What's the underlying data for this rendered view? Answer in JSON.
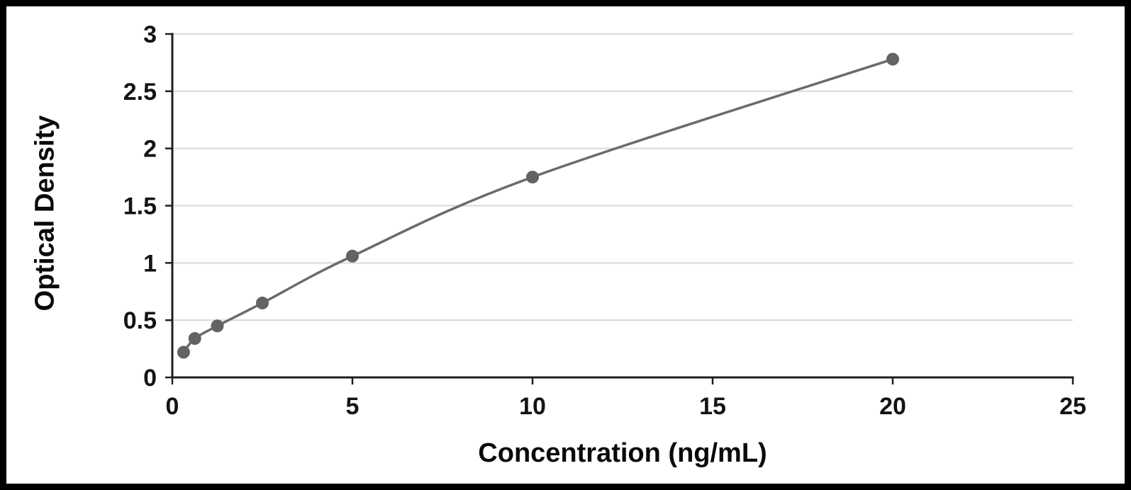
{
  "chart_data": {
    "type": "line",
    "title": "",
    "xlabel": "Concentration (ng/mL)",
    "ylabel": "Optical Density",
    "x": [
      0.313,
      0.625,
      1.25,
      2.5,
      5,
      10,
      20
    ],
    "y": [
      0.22,
      0.34,
      0.45,
      0.65,
      1.06,
      1.75,
      2.78
    ],
    "xlim": [
      0,
      25
    ],
    "ylim": [
      0,
      3
    ],
    "x_ticks": [
      0,
      5,
      10,
      15,
      20,
      25
    ],
    "y_ticks": [
      0,
      0.5,
      1,
      1.5,
      2,
      2.5,
      3
    ],
    "grid": "horizontal",
    "legend": "none",
    "line_color": "#6b6b6b",
    "marker_color": "#636363",
    "grid_color": "#d9d9d9",
    "axis_color": "#1f1f1f"
  }
}
